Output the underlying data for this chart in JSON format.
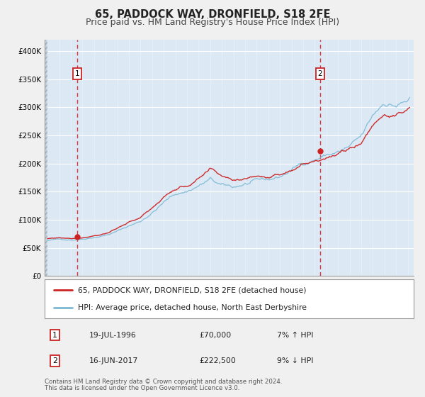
{
  "title": "65, PADDOCK WAY, DRONFIELD, S18 2FE",
  "subtitle": "Price paid vs. HM Land Registry's House Price Index (HPI)",
  "legend_line1": "65, PADDOCK WAY, DRONFIELD, S18 2FE (detached house)",
  "legend_line2": "HPI: Average price, detached house, North East Derbyshire",
  "footnote1": "Contains HM Land Registry data © Crown copyright and database right 2024.",
  "footnote2": "This data is licensed under the Open Government Licence v3.0.",
  "sale1_date": "19-JUL-1996",
  "sale1_price": "£70,000",
  "sale1_hpi": "7% ↑ HPI",
  "sale2_date": "16-JUN-2017",
  "sale2_price": "£222,500",
  "sale2_hpi": "9% ↓ HPI",
  "xlim_left": 1993.75,
  "xlim_right": 2025.5,
  "ylim_top": 420000,
  "yticks": [
    0,
    50000,
    100000,
    150000,
    200000,
    250000,
    300000,
    350000,
    400000
  ],
  "ytick_labels": [
    "£0",
    "£50K",
    "£100K",
    "£150K",
    "£200K",
    "£250K",
    "£300K",
    "£350K",
    "£400K"
  ],
  "hpi_color": "#7bb8d4",
  "sale_color": "#cc2222",
  "bg_fig": "#f0f0f0",
  "bg_plot": "#dce9f5",
  "bg_hatch": "#d0d8e0",
  "grid_color": "#ffffff",
  "vline_color": "#dd2222",
  "marker1_x": 1996.54,
  "marker1_y": 70000,
  "marker2_x": 2017.46,
  "marker2_y": 222500,
  "vline1_x": 1996.54,
  "vline2_x": 2017.46,
  "box_color": "#cc2222",
  "hatch_end_x": 1994.0,
  "data_start_x": 1994.0,
  "title_fontsize": 10.5,
  "subtitle_fontsize": 9
}
